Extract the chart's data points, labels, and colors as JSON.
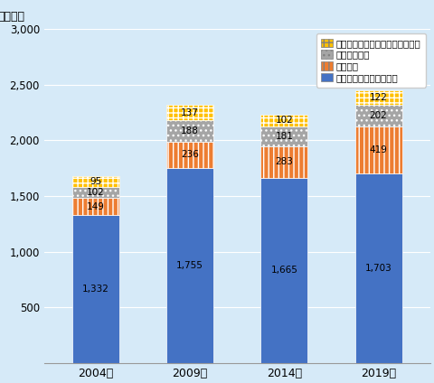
{
  "years": [
    "2004年",
    "2009年",
    "2014年",
    "2019年"
  ],
  "series": {
    "医療・研究用非電子機器": [
      1332,
      1755,
      1665,
      1703
    ],
    "眼科製品": [
      149,
      236,
      283,
      419
    ],
    "医療用消耗品": [
      102,
      188,
      181,
      202
    ],
    "測定・管理・航行・電子医療機器": [
      95,
      137,
      102,
      122
    ]
  },
  "colors": {
    "医療・研究用非電子機器": "#4472C4",
    "眼科製品": "#ED7D31",
    "医療用消耗品": "#A5A5A5",
    "測定・管理・航行・電子医療機器": "#FFC000"
  },
  "hatches": {
    "医療・研究用非電子機器": "",
    "眼科製品": "|||",
    "医療用消耗品": "...",
    "測定・管理・航行・電子医療機器": "+++"
  },
  "ylabel": "（箇所）",
  "ylim": [
    0,
    3000
  ],
  "yticks": [
    0,
    500,
    1000,
    1500,
    2000,
    2500,
    3000
  ],
  "background_color": "#D6EAF8",
  "bar_width": 0.5,
  "legend_order": [
    "測定・管理・航行・電子医療機器",
    "医療用消耗品",
    "眼科製品",
    "医療・研究用非電子機器"
  ]
}
